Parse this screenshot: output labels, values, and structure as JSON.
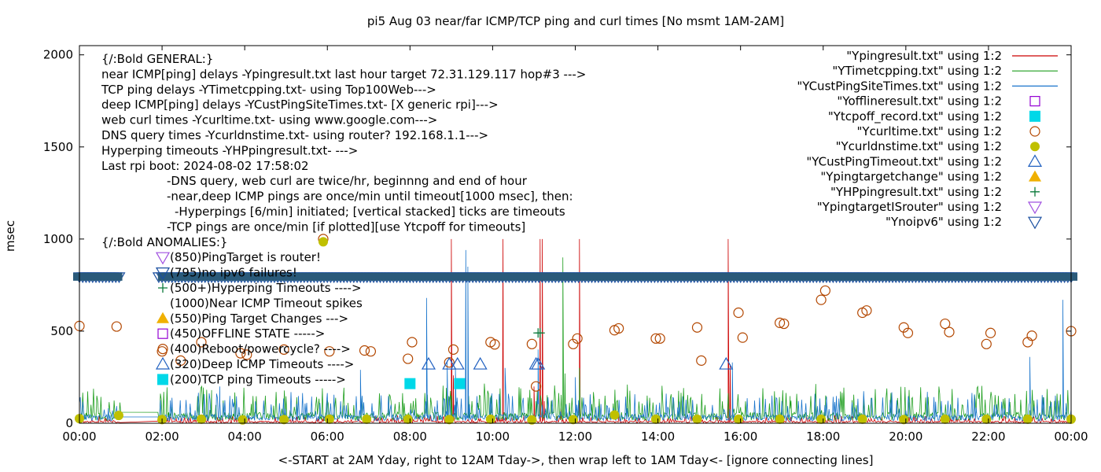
{
  "chart_data": {
    "type": "line",
    "title": "pi5 Aug 03  near/far ICMP/TCP ping and curl times [No msmt 1AM-2AM]",
    "xlabel": "<-START at 2AM Yday, right to 12AM Tday->, then wrap left to 1AM Tday<- [ignore connecting lines]",
    "ylabel": "msec",
    "xlim": [
      0,
      24
    ],
    "ylim": [
      0,
      2050
    ],
    "x_ticks": [
      {
        "v": 0,
        "label": "00:00"
      },
      {
        "v": 2,
        "label": "02:00"
      },
      {
        "v": 4,
        "label": "04:00"
      },
      {
        "v": 6,
        "label": "06:00"
      },
      {
        "v": 8,
        "label": "08:00"
      },
      {
        "v": 10,
        "label": "10:00"
      },
      {
        "v": 12,
        "label": "12:00"
      },
      {
        "v": 14,
        "label": "14:00"
      },
      {
        "v": 16,
        "label": "16:00"
      },
      {
        "v": 18,
        "label": "18:00"
      },
      {
        "v": 20,
        "label": "20:00"
      },
      {
        "v": 22,
        "label": "22:00"
      },
      {
        "v": 24,
        "label": "00:00"
      }
    ],
    "y_ticks": [
      {
        "v": 0,
        "label": "0"
      },
      {
        "v": 500,
        "label": "500"
      },
      {
        "v": 1000,
        "label": "1000"
      },
      {
        "v": 1500,
        "label": "1500"
      },
      {
        "v": 2000,
        "label": "2000"
      }
    ],
    "grid": false,
    "legend_position": "top-right",
    "legend": [
      {
        "label": "\"Ypingresult.txt\" using 1:2",
        "kind": "line",
        "color": "#cc0000"
      },
      {
        "label": "\"YTimetcpping.txt\" using 1:2",
        "kind": "line",
        "color": "#1e9e1e"
      },
      {
        "label": "\"YCustPingSiteTimes.txt\" using 1:2",
        "kind": "line",
        "color": "#1a75cc"
      },
      {
        "label": "\"Yofflineresult.txt\" using 1:2",
        "kind": "square-open",
        "color": "#9400d3"
      },
      {
        "label": "\"Ytcpoff_record.txt\" using 1:2",
        "kind": "square-filled",
        "color": "#00d8e8"
      },
      {
        "label": "\"Ycurltime.txt\" using 1:2",
        "kind": "circle-open",
        "color": "#b34700"
      },
      {
        "label": "\"Ycurldnstime.txt\" using 1:2",
        "kind": "circle-filled",
        "color": "#c0c000"
      },
      {
        "label": "\"YCustPingTimeout.txt\" using 1:2",
        "kind": "triangle-open",
        "color": "#2060c0"
      },
      {
        "label": "\"Ypingtargetchange\" using 1:2",
        "kind": "triangle-filled",
        "color": "#f0b000"
      },
      {
        "label": "\"YHPpingresult.txt\" using 1:2",
        "kind": "plus",
        "color": "#0a7a3a"
      },
      {
        "label": "\"YpingtargetISrouter\" using 1:2",
        "kind": "triangle-down-open",
        "color": "#a050e0"
      },
      {
        "label": "\"Ynoipv6\" using 1:2",
        "kind": "triangle-down-open",
        "color": "#1a4fa0"
      }
    ],
    "notes": [
      "{/:Bold GENERAL:}",
      "near ICMP[ping] delays -Ypingresult.txt last hour target 72.31.129.117 hop#3 --->",
      "TCP ping delays -YTimetcpping.txt- using Top100Web--->",
      "deep ICMP[ping] delays -YCustPingSiteTimes.txt- [X generic rpi]--->",
      "web curl times -Ycurltime.txt- using www.google.com--->",
      "DNS query times -Ycurldnstime.txt- using router? 192.168.1.1--->",
      "Hyperping timeouts -YHPpingresult.txt- --->",
      "Last rpi boot: 2024-08-02 17:58:02",
      "-DNS query, web curl are twice/hr, beginnng and end of hour",
      "-near,deep ICMP pings are once/min until timeout[1000 msec], then:",
      "-Hyperpings [6/min] initiated; [vertical stacked] ticks are timeouts",
      "-TCP pings are once/min [if plotted][use Ytcpoff for timeouts]",
      "{/:Bold ANOMALIES:}",
      "(850)PingTarget is router!",
      "(795)no ipv6 failures!",
      "(500+)Hyperping Timeouts ---->",
      "(1000)Near ICMP Timeout spikes",
      "(550)Ping Target Changes --->",
      "(450)OFFLINE STATE ----->",
      "(400)Reboot/powercycle? ---->",
      "(320)Deep ICMP Timeouts ---->",
      "(200)TCP ping Timeouts ----->"
    ],
    "series": [
      {
        "name": "\"Ypingresult.txt\" using 1:2",
        "color": "#cc0000",
        "baseline": 10,
        "spikes": [
          [
            6.25,
            28
          ],
          [
            9.0,
            1000
          ],
          [
            9.05,
            260
          ],
          [
            10.25,
            1000
          ],
          [
            11.0,
            200
          ],
          [
            11.15,
            1000
          ],
          [
            11.2,
            1000
          ],
          [
            11.25,
            120
          ],
          [
            11.65,
            80
          ],
          [
            12.1,
            1000
          ],
          [
            15.7,
            1000
          ],
          [
            15.75,
            320
          ],
          [
            18.0,
            40
          ]
        ]
      },
      {
        "name": "\"YTimetcpping.txt\" using 1:2",
        "color": "#1e9e1e",
        "baseline": 50,
        "spikes": [
          [
            1.0,
            60
          ],
          [
            3.2,
            180
          ],
          [
            6.5,
            110
          ],
          [
            9.0,
            150
          ],
          [
            11.05,
            120
          ],
          [
            11.7,
            900
          ],
          [
            11.75,
            270
          ],
          [
            12.1,
            300
          ],
          [
            17.2,
            80
          ],
          [
            23.0,
            70
          ]
        ]
      },
      {
        "name": "\"YCustPingSiteTimes.txt\" using 1:2",
        "color": "#1a75cc",
        "baseline": 40,
        "spikes": [
          [
            3.4,
            200
          ],
          [
            6.8,
            290
          ],
          [
            8.4,
            680
          ],
          [
            8.9,
            340
          ],
          [
            9.35,
            940
          ],
          [
            9.4,
            850
          ],
          [
            9.1,
            300
          ],
          [
            10.3,
            300
          ],
          [
            11.1,
            400
          ],
          [
            12.0,
            250
          ],
          [
            15.8,
            330
          ],
          [
            23.0,
            360
          ],
          [
            23.8,
            670
          ]
        ]
      },
      {
        "name": "\"Ycurltime.txt\" using 1:2",
        "color": "#b34700",
        "kind": "circle-open",
        "points": [
          [
            0.0,
            528
          ],
          [
            0.9,
            525
          ],
          [
            2.0,
            390
          ],
          [
            2.45,
            340
          ],
          [
            2.95,
            440
          ],
          [
            3.9,
            380
          ],
          [
            4.05,
            372
          ],
          [
            4.95,
            400
          ],
          [
            5.9,
            1000
          ],
          [
            6.05,
            390
          ],
          [
            6.9,
            395
          ],
          [
            7.05,
            390
          ],
          [
            7.95,
            350
          ],
          [
            8.05,
            440
          ],
          [
            8.95,
            330
          ],
          [
            9.05,
            400
          ],
          [
            9.95,
            440
          ],
          [
            10.05,
            428
          ],
          [
            10.95,
            430
          ],
          [
            11.05,
            200
          ],
          [
            11.95,
            430
          ],
          [
            12.05,
            460
          ],
          [
            12.95,
            505
          ],
          [
            13.05,
            515
          ],
          [
            13.95,
            460
          ],
          [
            14.05,
            460
          ],
          [
            14.95,
            520
          ],
          [
            15.05,
            340
          ],
          [
            15.95,
            600
          ],
          [
            16.05,
            465
          ],
          [
            16.95,
            545
          ],
          [
            17.05,
            540
          ],
          [
            17.95,
            670
          ],
          [
            18.05,
            720
          ],
          [
            18.95,
            600
          ],
          [
            19.05,
            612
          ],
          [
            19.95,
            520
          ],
          [
            20.05,
            490
          ],
          [
            20.95,
            540
          ],
          [
            21.05,
            495
          ],
          [
            21.95,
            430
          ],
          [
            22.05,
            490
          ],
          [
            22.95,
            440
          ],
          [
            23.05,
            475
          ],
          [
            24.0,
            500
          ]
        ]
      },
      {
        "name": "\"Ycurldnstime.txt\" using 1:2",
        "color": "#c0c000",
        "kind": "circle-filled",
        "points": [
          [
            0.0,
            25
          ],
          [
            0.95,
            42
          ],
          [
            2.0,
            20
          ],
          [
            2.95,
            22
          ],
          [
            3.95,
            18
          ],
          [
            4.95,
            20
          ],
          [
            5.9,
            985
          ],
          [
            6.05,
            22
          ],
          [
            6.95,
            22
          ],
          [
            7.95,
            22
          ],
          [
            8.95,
            20
          ],
          [
            9.95,
            22
          ],
          [
            10.95,
            18
          ],
          [
            11.95,
            20
          ],
          [
            12.95,
            45
          ],
          [
            13.95,
            22
          ],
          [
            14.95,
            22
          ],
          [
            15.95,
            22
          ],
          [
            16.95,
            22
          ],
          [
            17.95,
            22
          ],
          [
            18.95,
            22
          ],
          [
            19.95,
            20
          ],
          [
            20.95,
            22
          ],
          [
            21.95,
            22
          ],
          [
            22.95,
            22
          ],
          [
            24.0,
            22
          ]
        ]
      },
      {
        "name": "\"YCustPingTimeout.txt\" using 1:2",
        "color": "#2060c0",
        "kind": "triangle-open",
        "points": [
          [
            8.45,
            320
          ],
          [
            8.95,
            320
          ],
          [
            9.15,
            320
          ],
          [
            9.7,
            320
          ],
          [
            11.05,
            320
          ],
          [
            11.1,
            320
          ],
          [
            15.65,
            320
          ]
        ]
      },
      {
        "name": "\"Ytcpoff_record.txt\" using 1:2",
        "color": "#00d8e8",
        "kind": "square-filled",
        "points": [
          [
            8.0,
            215
          ],
          [
            9.2,
            215
          ]
        ]
      },
      {
        "name": "\"YHPpingresult.txt\" using 1:2",
        "color": "#0a7a3a",
        "kind": "plus",
        "points": [
          [
            11.1,
            490
          ],
          [
            11.15,
            490
          ]
        ]
      }
    ],
    "noipv6_band": {
      "y": 795,
      "gaps": [
        [
          1.0,
          1.9
        ]
      ]
    }
  }
}
